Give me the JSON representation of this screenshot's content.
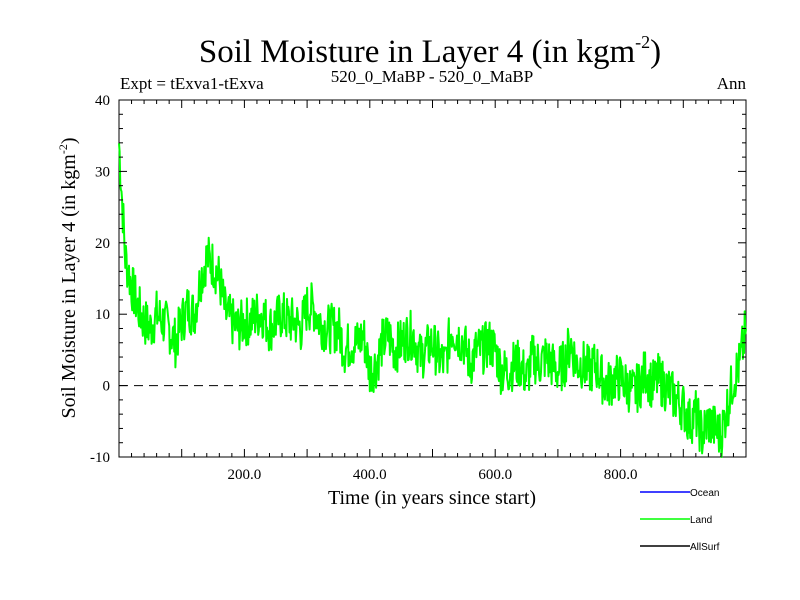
{
  "chart_data": {
    "type": "line",
    "title": "Soil Moisture in Layer 4 (in kgm",
    "title_superscript": "-2",
    "title_close": ")",
    "subtitle_left": "Expt = tExva1-tExva",
    "subtitle_center": "520_0_MaBP - 520_0_MaBP",
    "subtitle_right": "Ann",
    "xlabel": "Time (in years since start)",
    "ylabel": "Soil Moisture in Layer 4 (in kgm",
    "ylabel_superscript": "-2",
    "ylabel_close": ")",
    "xlim": [
      0,
      1000
    ],
    "ylim": [
      -10,
      40
    ],
    "x_ticks": [
      200,
      400,
      600,
      800
    ],
    "x_tick_labels": [
      "200.0",
      "400.0",
      "600.0",
      "800.0"
    ],
    "y_ticks": [
      -10,
      0,
      10,
      20,
      30,
      40
    ],
    "y_tick_labels": [
      "-10",
      "0",
      "10",
      "20",
      "30",
      "40"
    ],
    "reference_line": 0,
    "legend": [
      {
        "name": "Ocean",
        "color": "#0000ff"
      },
      {
        "name": "Land",
        "color": "#00ff00"
      },
      {
        "name": "AllSurf",
        "color": "#000000"
      }
    ],
    "series": [
      {
        "name": "Land",
        "color": "#00ff00",
        "x": [
          0,
          10,
          20,
          30,
          40,
          50,
          60,
          70,
          80,
          90,
          100,
          110,
          120,
          130,
          140,
          150,
          160,
          170,
          180,
          190,
          200,
          210,
          220,
          230,
          240,
          250,
          260,
          270,
          280,
          290,
          300,
          310,
          320,
          330,
          340,
          350,
          360,
          370,
          380,
          390,
          400,
          410,
          420,
          430,
          440,
          450,
          460,
          470,
          480,
          490,
          500,
          510,
          520,
          530,
          540,
          550,
          560,
          570,
          580,
          590,
          600,
          610,
          620,
          630,
          640,
          650,
          660,
          670,
          680,
          690,
          700,
          710,
          720,
          730,
          740,
          750,
          760,
          770,
          780,
          790,
          800,
          810,
          820,
          830,
          840,
          850,
          860,
          870,
          880,
          890,
          900,
          910,
          920,
          930,
          940,
          950,
          960,
          970,
          980,
          990,
          1000
        ],
        "values": [
          34,
          18,
          14,
          11,
          9,
          8,
          10,
          9,
          8,
          6,
          9,
          11,
          10,
          15,
          18,
          17,
          15,
          10,
          9,
          8,
          9,
          9,
          10,
          10,
          8,
          9,
          10,
          9,
          9,
          8,
          11,
          11,
          9,
          8,
          8,
          8,
          5,
          6,
          6,
          7,
          2,
          3,
          6,
          7,
          5,
          6,
          7,
          7,
          4,
          5,
          6,
          4,
          3,
          8,
          7,
          6,
          3,
          5,
          5,
          6,
          5,
          2,
          2,
          3,
          3,
          1,
          4,
          3,
          4,
          3,
          2,
          3,
          6,
          3,
          3,
          2,
          3,
          1,
          0,
          1,
          1,
          0,
          -1,
          0,
          2,
          0,
          1,
          0,
          -1,
          -2,
          -3,
          -5,
          -4,
          -7,
          -5,
          -6,
          -7,
          -3,
          1,
          3,
          8
        ]
      }
    ]
  }
}
